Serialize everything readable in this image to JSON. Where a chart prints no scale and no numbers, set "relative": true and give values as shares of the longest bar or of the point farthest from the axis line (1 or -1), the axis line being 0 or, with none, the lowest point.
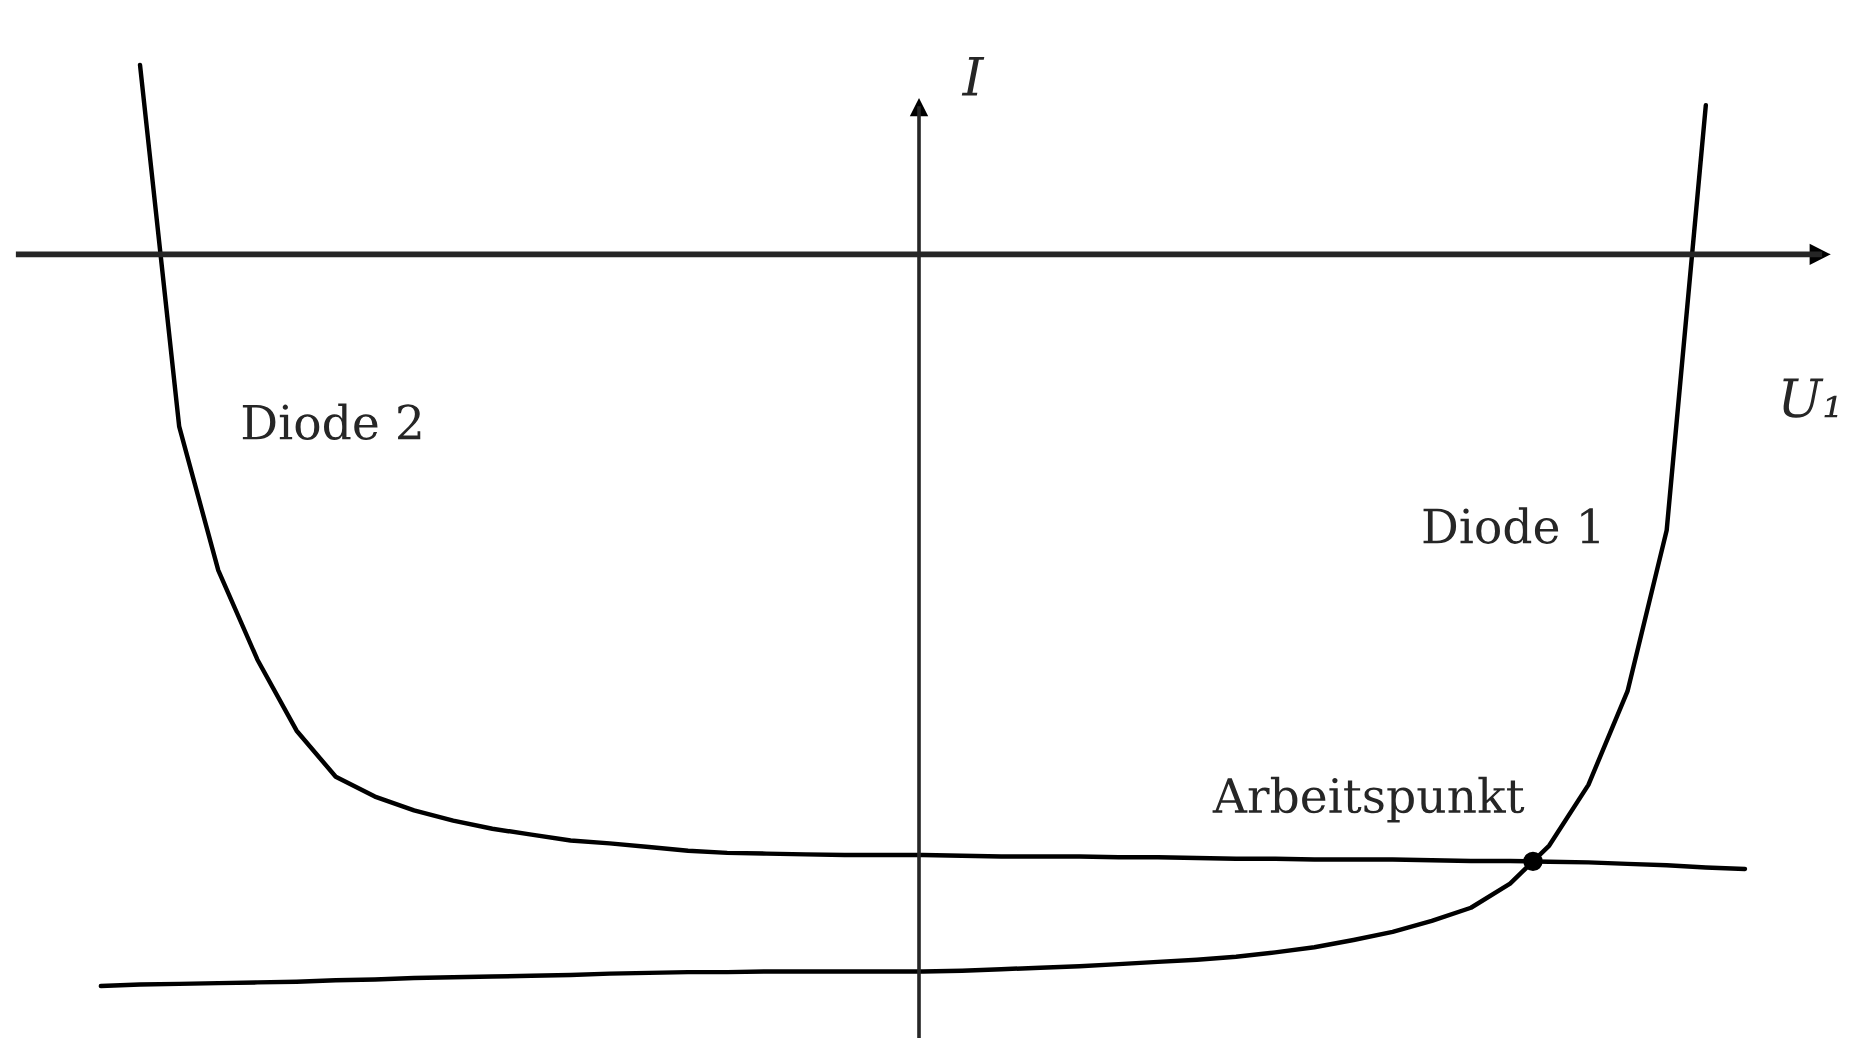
{
  "chart_data": {
    "type": "line",
    "relative": true,
    "xlabel": "U₁",
    "ylabel": "I",
    "grid": false,
    "line_style": "solid",
    "categories": [
      null,
      null,
      null,
      null,
      null,
      null,
      null,
      null,
      null,
      null,
      null,
      null,
      null,
      null,
      null,
      null,
      null,
      null,
      null,
      null,
      null,
      null,
      null,
      null,
      null,
      null,
      null,
      null,
      null,
      null,
      null,
      null,
      null,
      null,
      null,
      null,
      null,
      null,
      null,
      null,
      null,
      null,
      null
    ],
    "series": [
      {
        "name": "Diode 1",
        "color": "#000000",
        "values": [
          -1.0,
          -0.998,
          -0.997,
          -0.996,
          -0.995,
          -0.994,
          -0.992,
          -0.991,
          -0.989,
          -0.988,
          -0.987,
          -0.986,
          -0.985,
          -0.983,
          -0.982,
          -0.981,
          -0.981,
          -0.98,
          -0.98,
          -0.98,
          -0.98,
          -0.98,
          -0.979,
          -0.977,
          -0.975,
          -0.973,
          -0.97,
          -0.967,
          -0.964,
          -0.96,
          -0.954,
          -0.947,
          -0.937,
          -0.926,
          -0.911,
          -0.893,
          -0.86,
          -0.808,
          -0.725,
          -0.597,
          -0.377,
          0.204,
          null
        ]
      },
      {
        "name": "Diode 2",
        "color": "#000000",
        "values": [
          null,
          0.259,
          -0.235,
          -0.432,
          -0.554,
          -0.651,
          -0.714,
          -0.741,
          -0.76,
          -0.774,
          -0.785,
          -0.793,
          -0.801,
          -0.805,
          -0.81,
          -0.815,
          -0.818,
          -0.819,
          -0.82,
          -0.821,
          -0.821,
          -0.821,
          -0.822,
          -0.823,
          -0.823,
          -0.823,
          -0.824,
          -0.824,
          -0.825,
          -0.826,
          -0.826,
          -0.827,
          -0.827,
          -0.827,
          -0.828,
          -0.829,
          -0.829,
          -0.83,
          -0.831,
          -0.833,
          -0.835,
          -0.838,
          -0.84
        ]
      }
    ],
    "annotations": [
      "Arbeitspunkt"
    ]
  }
}
